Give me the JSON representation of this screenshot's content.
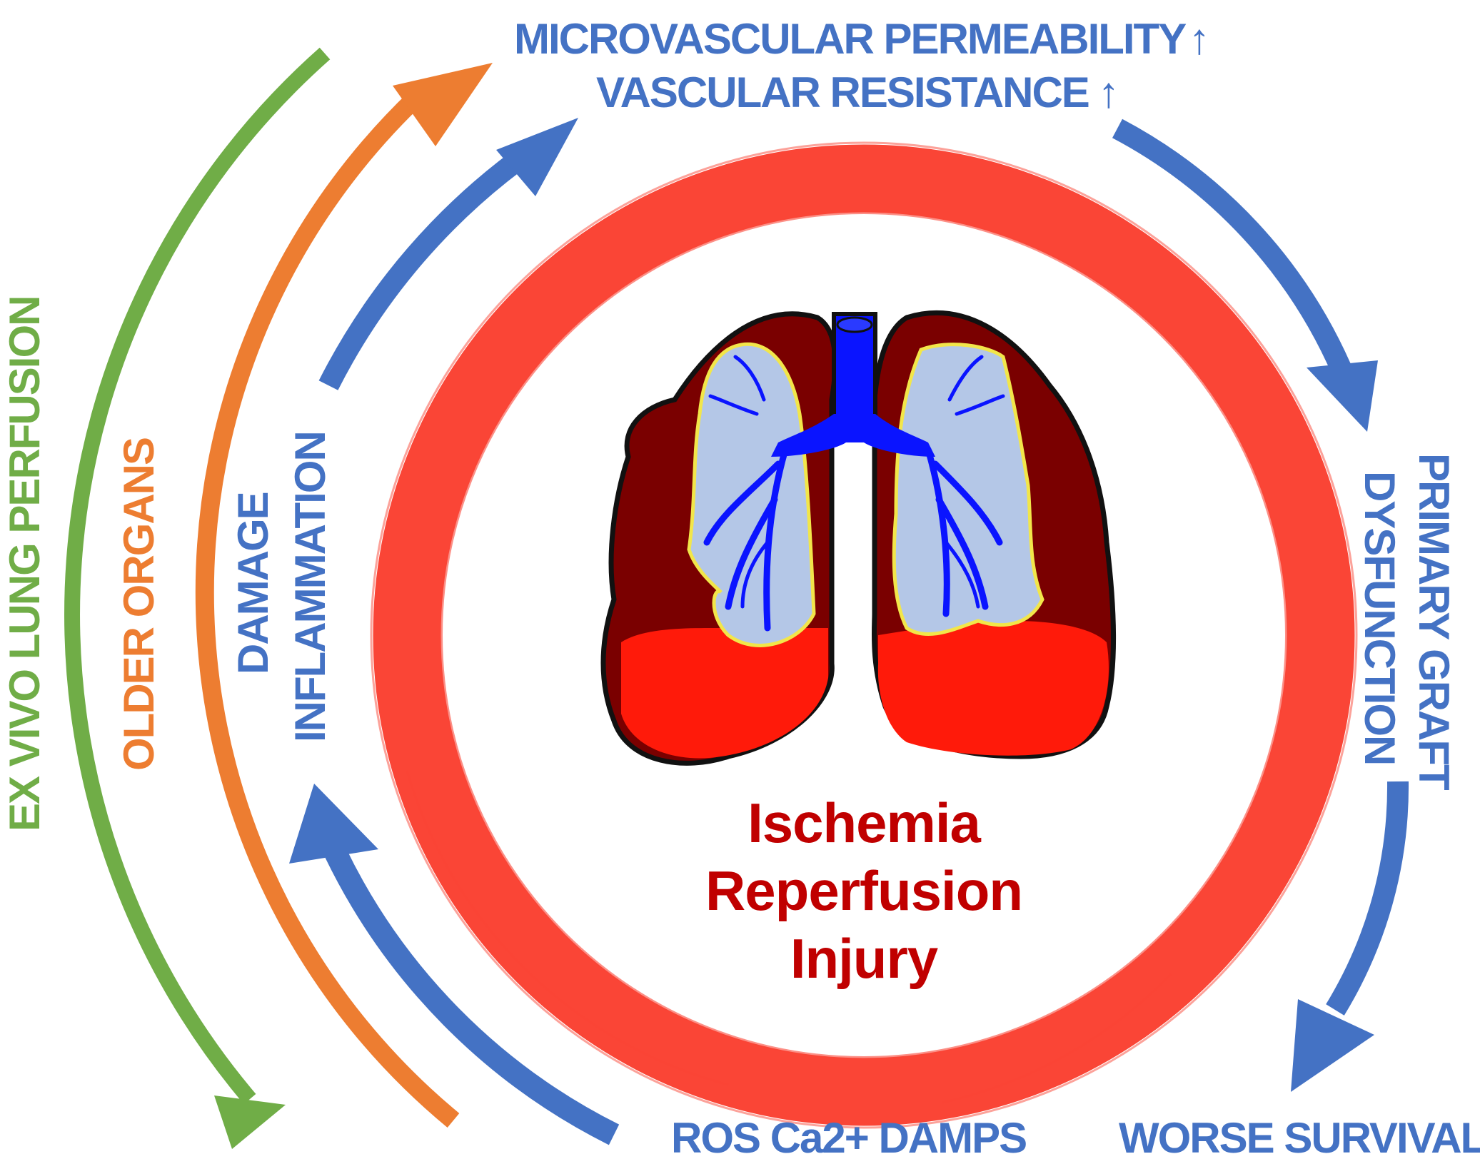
{
  "labels": {
    "microvascular_permeability": "MICROVASCULAR PERMEABILITY",
    "microvascular_arrow": "↑",
    "vascular_resistance": "VASCULAR RESISTANCE",
    "vascular_arrow": "↑",
    "primary_graft": "PRIMARY GRAFT",
    "dysfunction": "DYSFUNCTION",
    "worse_survival": "WORSE SURVIVAL",
    "ros_damps": "ROS Ca2+ DAMPS",
    "damage": "DAMAGE",
    "inflammation": "INFLAMMATION",
    "older_organs": "OLDER ORGANS",
    "ex_vivo": "EX VIVO LUNG PERFUSION",
    "center": [
      "Ischemia",
      "Reperfusion",
      "Injury"
    ]
  },
  "colors": {
    "green": "#70ad47",
    "orange": "#ed7d31",
    "blue": "#4472c4",
    "red_ring": "#fa4536",
    "title_red": "#c00000",
    "lung_dark": "#7a0000",
    "lung_bright": "#ff1a0a",
    "airway": "#0a14ff",
    "lung_light": "#b4c7e7",
    "outline_yellow": "#f2e64a"
  }
}
